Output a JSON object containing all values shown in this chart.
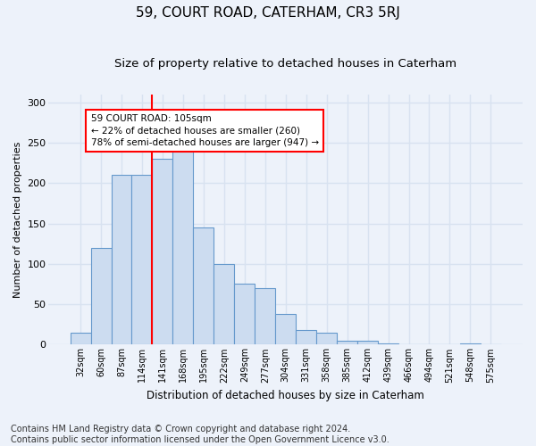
{
  "title": "59, COURT ROAD, CATERHAM, CR3 5RJ",
  "subtitle": "Size of property relative to detached houses in Caterham",
  "xlabel": "Distribution of detached houses by size in Caterham",
  "ylabel": "Number of detached properties",
  "bin_labels": [
    "32sqm",
    "60sqm",
    "87sqm",
    "114sqm",
    "141sqm",
    "168sqm",
    "195sqm",
    "222sqm",
    "249sqm",
    "277sqm",
    "304sqm",
    "331sqm",
    "358sqm",
    "385sqm",
    "412sqm",
    "439sqm",
    "466sqm",
    "494sqm",
    "521sqm",
    "548sqm",
    "575sqm"
  ],
  "bar_heights": [
    15,
    120,
    210,
    210,
    230,
    245,
    145,
    100,
    75,
    70,
    38,
    18,
    15,
    5,
    5,
    2,
    0,
    0,
    0,
    2,
    0
  ],
  "bar_color": "#ccdcf0",
  "bar_edge_color": "#6699cc",
  "vline_color": "red",
  "vline_x": 3.5,
  "annotation_text": "59 COURT ROAD: 105sqm\n← 22% of detached houses are smaller (260)\n78% of semi-detached houses are larger (947) →",
  "annotation_box_color": "white",
  "annotation_box_edge": "red",
  "footer_text": "Contains HM Land Registry data © Crown copyright and database right 2024.\nContains public sector information licensed under the Open Government Licence v3.0.",
  "ylim": [
    0,
    310
  ],
  "background_color": "#edf2fa",
  "grid_color": "#d8e2f0",
  "title_fontsize": 11,
  "subtitle_fontsize": 9.5,
  "axis_fontsize": 8,
  "footer_fontsize": 7
}
